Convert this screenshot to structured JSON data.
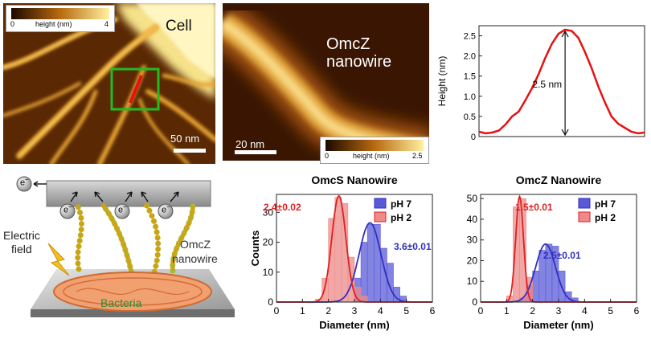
{
  "panel_a": {
    "cell_label": "Cell",
    "scalebar_label": "50 nm",
    "colorbar": {
      "min": "0",
      "label": "height (nm)",
      "max": "4"
    }
  },
  "panel_b": {
    "title_line1": "OmcZ",
    "title_line2": "nanowire",
    "scalebar_label": "20 nm",
    "colorbar": {
      "min": "0",
      "label": "height (nm)",
      "max": "2.5"
    }
  },
  "colors": {
    "profile_line": "#e81010",
    "ph7": "#3030c0",
    "ph2": "#e02020",
    "roi_box": "#22bb22"
  },
  "chart_data": [
    {
      "type": "line",
      "ylabel": "Height (nm)",
      "ylim": [
        0,
        2.75
      ],
      "yticks": [
        "0",
        "0.5",
        "1.0",
        "1.5",
        "2.0",
        "2.5"
      ],
      "annotation": "2.5 nm",
      "x": [
        0,
        2,
        4,
        6,
        8,
        10,
        12,
        14,
        16,
        18,
        20,
        22,
        24,
        26,
        28,
        30,
        32,
        34,
        36,
        38,
        40,
        42,
        44,
        46,
        48,
        50
      ],
      "values": [
        0.12,
        0.08,
        0.1,
        0.15,
        0.3,
        0.5,
        0.62,
        0.9,
        1.2,
        1.55,
        1.95,
        2.3,
        2.55,
        2.65,
        2.62,
        2.45,
        2.1,
        1.7,
        1.25,
        0.85,
        0.5,
        0.32,
        0.22,
        0.12,
        0.08,
        0.1
      ]
    },
    {
      "type": "bar",
      "title": "OmcS Nanowire",
      "xlabel": "Diameter (nm)",
      "ylabel": "Counts",
      "xlim": [
        0,
        6
      ],
      "ylim": [
        0,
        36
      ],
      "xticks": [
        "0",
        "1",
        "2",
        "3",
        "4",
        "5",
        "6"
      ],
      "yticks": [
        "0",
        "10",
        "20",
        "30"
      ],
      "bin_width": 0.25,
      "legend": "top-right",
      "series": [
        {
          "name": "pH 7",
          "bin_starts": [
            3.0,
            3.25,
            3.5,
            3.75,
            4.0,
            4.25,
            4.5,
            4.75
          ],
          "counts": [
            8,
            20,
            26,
            26,
            18,
            13,
            5,
            2
          ],
          "fit_mean": 3.6,
          "fit_sd": 0.42,
          "fit_peak": 26.5,
          "label": "3.6±0.01"
        },
        {
          "name": "pH 2",
          "bin_starts": [
            1.5,
            1.75,
            2.0,
            2.25,
            2.5,
            2.75,
            3.0,
            3.25
          ],
          "counts": [
            1,
            8,
            28,
            35,
            33,
            15,
            5,
            2
          ],
          "fit_mean": 2.4,
          "fit_sd": 0.27,
          "fit_peak": 35.5,
          "label": "2.4±0.02"
        }
      ]
    },
    {
      "type": "bar",
      "title": "OmcZ Nanowire",
      "xlabel": "Diameter (nm)",
      "ylabel": "",
      "xlim": [
        0,
        6
      ],
      "ylim": [
        0,
        52
      ],
      "xticks": [
        "0",
        "1",
        "2",
        "3",
        "4",
        "5",
        "6"
      ],
      "yticks": [
        "0",
        "10",
        "20",
        "30",
        "40",
        "50"
      ],
      "bin_width": 0.25,
      "legend": "top-right",
      "series": [
        {
          "name": "pH 7",
          "bin_starts": [
            1.5,
            1.75,
            2.0,
            2.25,
            2.5,
            2.75,
            3.0,
            3.25,
            3.5
          ],
          "counts": [
            2,
            8,
            15,
            25,
            28,
            27,
            15,
            5,
            2
          ],
          "fit_mean": 2.5,
          "fit_sd": 0.38,
          "fit_peak": 28,
          "label": "2.5±0.01"
        },
        {
          "name": "pH 2",
          "bin_starts": [
            1.0,
            1.25,
            1.5,
            1.75
          ],
          "counts": [
            3,
            46,
            50,
            12
          ],
          "fit_mean": 1.5,
          "fit_sd": 0.15,
          "fit_peak": 51,
          "label": "1.5±0.01"
        }
      ]
    }
  ],
  "schematic": {
    "electron": "e",
    "electron_sup": "−",
    "field_line1": "Electric",
    "field_line2": "field",
    "wire_line1": "OmcZ",
    "wire_line2": "nanowire",
    "bacteria": "Bacteria"
  }
}
